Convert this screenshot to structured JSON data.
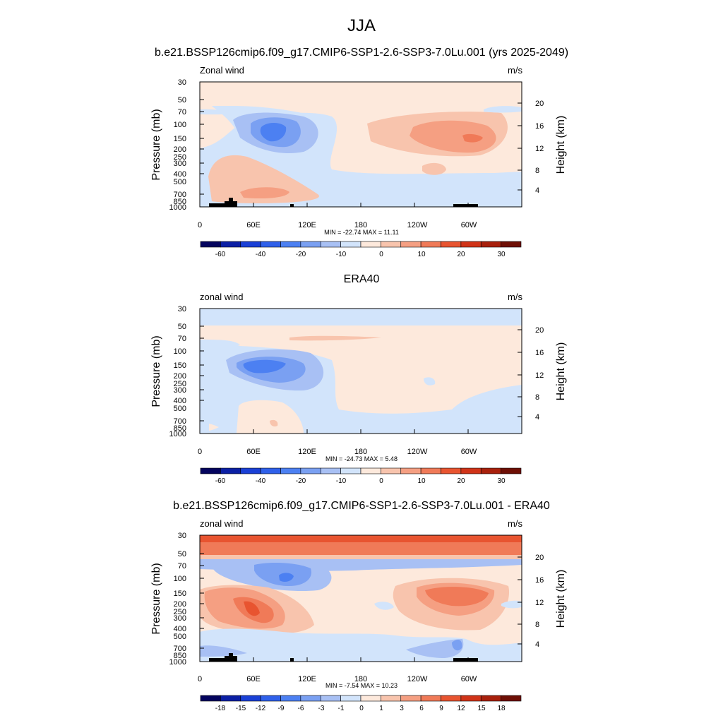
{
  "figure": {
    "title": "JJA"
  },
  "chart_data": [
    {
      "type": "heatmap",
      "title": "b.e21.BSSP126cmip6.f09_g17.CMIP6-SSP1-2.6-SSP3-7.0Lu.001 (yrs 2025-2049)",
      "left_label": "Zonal wind",
      "units_label": "m/s",
      "ylabel": "Pressure (mb)",
      "ylabel_right": "Height (km)",
      "x_ticks": [
        "0",
        "60E",
        "120E",
        "180",
        "120W",
        "60W"
      ],
      "y_ticks": [
        "30",
        "50",
        "70",
        "100",
        "150",
        "200",
        "250",
        "300",
        "400",
        "500",
        "700",
        "850",
        "1000"
      ],
      "height_ticks": [
        "20",
        "16",
        "12",
        "8",
        "4"
      ],
      "stats": "MIN = -22.74  MAX =  11.11",
      "colorbar_ticks": [
        "-60",
        "-40",
        "-20",
        "-10",
        "0",
        "10",
        "20",
        "30"
      ],
      "min": -22.74,
      "max": 11.11
    },
    {
      "type": "heatmap",
      "title": "ERA40",
      "left_label": "zonal wind",
      "units_label": "m/s",
      "ylabel": "Pressure (mb)",
      "ylabel_right": "Height (km)",
      "x_ticks": [
        "0",
        "60E",
        "120E",
        "180",
        "120W",
        "60W"
      ],
      "y_ticks": [
        "30",
        "50",
        "70",
        "100",
        "150",
        "200",
        "250",
        "300",
        "400",
        "500",
        "700",
        "850",
        "1000"
      ],
      "height_ticks": [
        "20",
        "16",
        "12",
        "8",
        "4"
      ],
      "stats": "MIN = -24.73  MAX =   5.48",
      "colorbar_ticks": [
        "-60",
        "-40",
        "-20",
        "-10",
        "0",
        "10",
        "20",
        "30"
      ],
      "min": -24.73,
      "max": 5.48
    },
    {
      "type": "heatmap",
      "title": "b.e21.BSSP126cmip6.f09_g17.CMIP6-SSP1-2.6-SSP3-7.0Lu.001 - ERA40",
      "left_label": "zonal wind",
      "units_label": "m/s",
      "ylabel": "Pressure (mb)",
      "ylabel_right": "Height (km)",
      "x_ticks": [
        "0",
        "60E",
        "120E",
        "180",
        "120W",
        "60W"
      ],
      "y_ticks": [
        "30",
        "50",
        "70",
        "100",
        "150",
        "200",
        "250",
        "300",
        "400",
        "500",
        "700",
        "850",
        "1000"
      ],
      "height_ticks": [
        "20",
        "16",
        "12",
        "8",
        "4"
      ],
      "stats": "MIN =  -7.54  MAX =  10.23",
      "colorbar_ticks": [
        "-18",
        "-15",
        "-12",
        "-9",
        "-6",
        "-3",
        "-1",
        "0",
        "1",
        "3",
        "6",
        "9",
        "12",
        "15",
        "18"
      ],
      "min": -7.54,
      "max": 10.23
    }
  ],
  "colors": {
    "bg_light": "#fde9dc",
    "palette": [
      "#04045e",
      "#0b1fa4",
      "#1a40d6",
      "#2f60ea",
      "#4c80f2",
      "#7aa0f2",
      "#a8c0f4",
      "#d2e4fb",
      "#fde9dc",
      "#f8c4ad",
      "#f59f82",
      "#f07a58",
      "#e85430",
      "#d03318",
      "#a8200c",
      "#6e0f05"
    ],
    "topo": "#000000"
  }
}
